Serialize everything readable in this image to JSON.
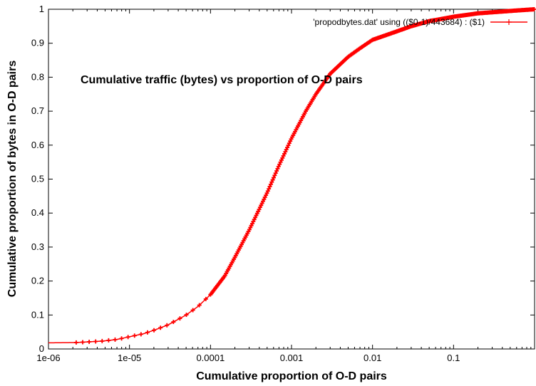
{
  "chart_data": {
    "type": "line",
    "xlabel": "Cumulative proportion of O-D pairs",
    "ylabel": "Cumulative proportion of bytes in O-D pairs",
    "annotation": "Cumulative traffic (bytes) vs proportion of O-D pairs",
    "xscale": "log",
    "xlim": [
      1e-06,
      1
    ],
    "ylim": [
      0,
      1
    ],
    "x_ticks": [
      1e-06,
      1e-05,
      0.0001,
      0.001,
      0.01,
      0.1
    ],
    "x_tick_labels": [
      "1e-06",
      "1e-05",
      "0.0001",
      "0.001",
      "0.01",
      "0.1"
    ],
    "y_ticks": [
      0,
      0.1,
      0.2,
      0.3,
      0.4,
      0.5,
      0.6,
      0.7,
      0.8,
      0.9,
      1
    ],
    "y_tick_labels": [
      "0",
      "0.1",
      "0.2",
      "0.3",
      "0.4",
      "0.5",
      "0.6",
      "0.7",
      "0.8",
      "0.9",
      "1"
    ],
    "grid": false,
    "legend_position": "top-right",
    "series": [
      {
        "name": "'propodbytes.dat' using (($0-1)/443684) : ($1)",
        "color": "#ff0000",
        "marker": "plus",
        "x": [
          1e-06,
          2.2e-06,
          4.5e-06,
          7e-06,
          1e-05,
          1.5e-05,
          2e-05,
          3e-05,
          5e-05,
          7e-05,
          0.0001,
          0.00015,
          0.0002,
          0.0003,
          0.0005,
          0.0007,
          0.001,
          0.0015,
          0.002,
          0.003,
          0.005,
          0.007,
          0.01,
          0.02,
          0.03,
          0.05,
          0.1,
          0.2,
          0.5,
          1
        ],
        "y": [
          0.018,
          0.019,
          0.023,
          0.028,
          0.036,
          0.045,
          0.055,
          0.071,
          0.1,
          0.125,
          0.16,
          0.215,
          0.27,
          0.35,
          0.46,
          0.54,
          0.62,
          0.7,
          0.75,
          0.81,
          0.86,
          0.885,
          0.91,
          0.935,
          0.95,
          0.965,
          0.978,
          0.988,
          0.995,
          1.0
        ]
      }
    ]
  }
}
